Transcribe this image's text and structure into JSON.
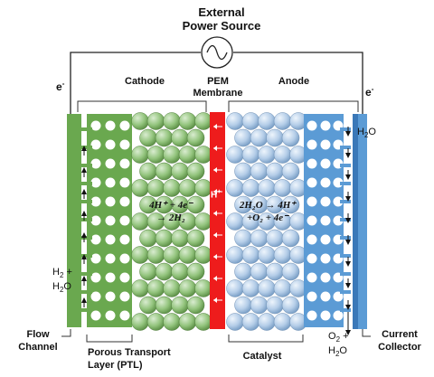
{
  "labels": {
    "power_source_line1": "External",
    "power_source_line2": "Power Source",
    "electron_left": "e",
    "electron_right": "e",
    "electron_sup": "-",
    "cathode": "Cathode",
    "pem_line1": "PEM",
    "pem_line2": "Membrane",
    "anode": "Anode",
    "proton": "H",
    "proton_sup": "+",
    "h2o_top": "H",
    "h2o_top_sub": "2",
    "h2o_top_tail": "O",
    "h2_left": "H",
    "h2_left_sub": "2",
    "h2_left_tail": " +",
    "h2o_left": "H",
    "h2o_left_sub": "2",
    "h2o_left_tail": "O",
    "o2_right": "O",
    "o2_right_sub": "2",
    "o2_right_tail": " +",
    "h2o_right": "H",
    "h2o_right_sub": "2",
    "h2o_right_tail": "O",
    "flow_channel_line1": "Flow",
    "flow_channel_line2": "Channel",
    "ptl_line1": "Porous Transport",
    "ptl_line2": "Layer (PTL)",
    "catalyst": "Catalyst",
    "current_collector_line1": "Current",
    "current_collector_line2": "Collector"
  },
  "reactions": {
    "cathode_line1": "4H⁺ + 4e⁻",
    "cathode_line2": "→ 2H₂",
    "anode_line1": "2H₂O → 4H⁺",
    "anode_line2": "+O₂ + 4e⁻"
  },
  "colors": {
    "green_dark": "#6aa84f",
    "green_sphere": "#93c47d",
    "blue_dark": "#5b9bd5",
    "blue_sphere": "#b4cde8",
    "membrane": "#ee1c1c",
    "line": "#222222"
  }
}
